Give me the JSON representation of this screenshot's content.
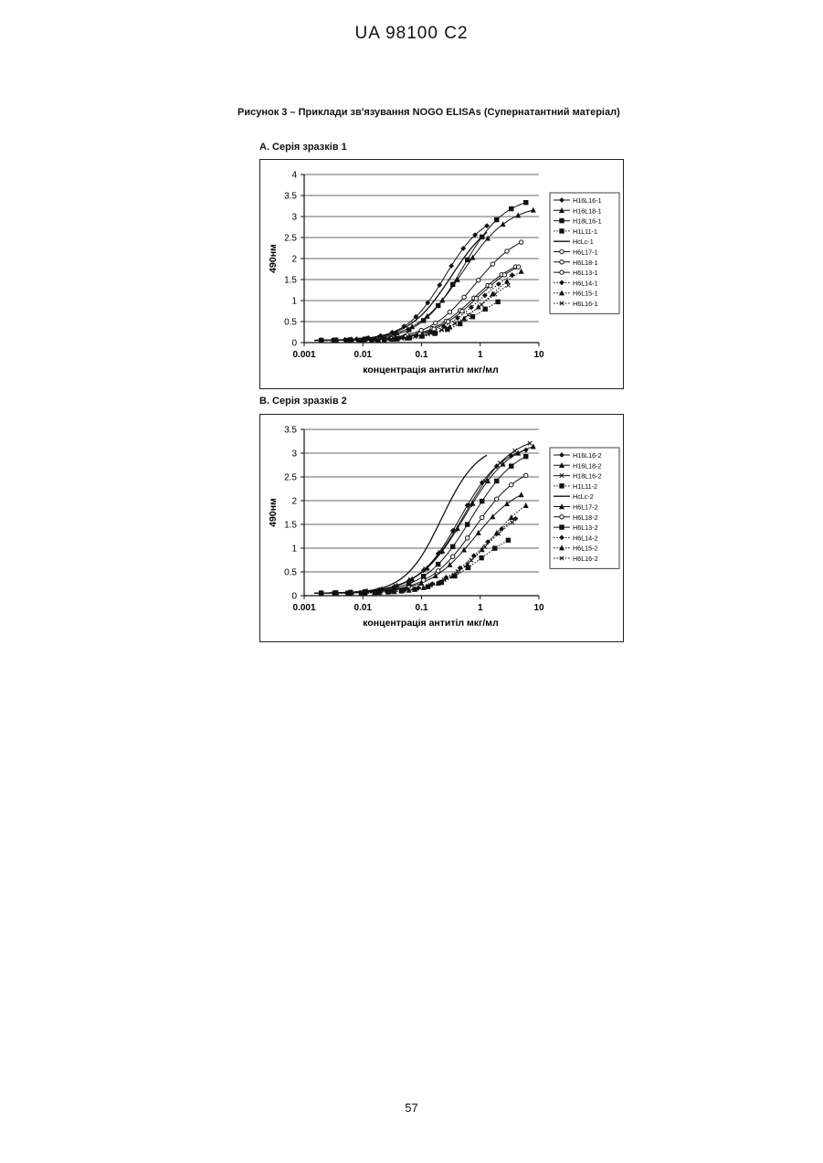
{
  "document": {
    "header": "UA   98100   C2",
    "caption": "Рисунок 3 –   Приклади зв'язування NOGO ELISAs (Супернатантний матеріал)",
    "page_number": "57"
  },
  "chart_data": [
    {
      "type": "line",
      "subtitle": "А. Серія зразків 1",
      "xlabel": "концентрація антитіл мкг/мл",
      "ylabel": "490нм",
      "xscale": "log",
      "xlim": [
        0.001,
        10
      ],
      "ylim": [
        0,
        4
      ],
      "xticks": [
        "0.001",
        "0.01",
        "0.1",
        "1",
        "10"
      ],
      "yticks": [
        "0",
        "0.5",
        "1",
        "1.5",
        "2",
        "2.5",
        "3",
        "3.5",
        "4"
      ],
      "grid": "horizontal",
      "legend_position": "right",
      "series": [
        {
          "name": "H16L16-1",
          "marker": "diamond",
          "dash": "solid",
          "top": 3.1,
          "ec50": 0.25,
          "hill": 1.3,
          "xmax": 1.3
        },
        {
          "name": "H16L18-1",
          "marker": "triangle",
          "dash": "solid",
          "top": 3.3,
          "ec50": 0.5,
          "hill": 1.1,
          "xmax": 8.0
        },
        {
          "name": "H18L16-1",
          "marker": "square",
          "dash": "solid",
          "top": 3.5,
          "ec50": 0.5,
          "hill": 1.2,
          "xmax": 6.0
        },
        {
          "name": "H1L11-1",
          "marker": "square",
          "dash": "dotted",
          "top": 1.4,
          "ec50": 1.0,
          "hill": 1.1,
          "xmax": 2.0
        },
        {
          "name": "HcLc-1",
          "marker": "none",
          "dash": "solid",
          "top": 3.1,
          "ec50": 0.32,
          "hill": 1.2,
          "xmax": 1.3
        },
        {
          "name": "H6L17-1",
          "marker": "circle",
          "dash": "solid",
          "top": 2.1,
          "ec50": 0.8,
          "hill": 1.1,
          "xmax": 4.0
        },
        {
          "name": "H6L18-1",
          "marker": "circle",
          "dash": "solid",
          "top": 2.7,
          "ec50": 0.8,
          "hill": 1.1,
          "xmax": 5.0
        },
        {
          "name": "H6L13-1",
          "marker": "circle",
          "dash": "solid",
          "top": 2.1,
          "ec50": 0.9,
          "hill": 1.1,
          "xmax": 4.5
        },
        {
          "name": "H6L14-1",
          "marker": "diamond",
          "dash": "dotted",
          "top": 2.0,
          "ec50": 1.0,
          "hill": 1.1,
          "xmax": 3.5
        },
        {
          "name": "H6L15-1",
          "marker": "triangle",
          "dash": "dotted",
          "top": 2.1,
          "ec50": 1.4,
          "hill": 1.1,
          "xmax": 5.0
        },
        {
          "name": "H6L16-1",
          "marker": "cross",
          "dash": "dotted",
          "top": 1.8,
          "ec50": 1.1,
          "hill": 1.1,
          "xmax": 3.0
        }
      ]
    },
    {
      "type": "line",
      "subtitle": "В. Серія зразків 2",
      "xlabel": "концентрація антитіл мкг/мл",
      "ylabel": "490нм",
      "xscale": "log",
      "xlim": [
        0.001,
        10
      ],
      "ylim": [
        0,
        3.5
      ],
      "xticks": [
        "0.001",
        "0.01",
        "0.1",
        "1",
        "10"
      ],
      "yticks": [
        "0",
        "0.5",
        "1",
        "1.5",
        "2",
        "2.5",
        "3",
        "3.5"
      ],
      "grid": "horizontal",
      "legend_position": "right",
      "series": [
        {
          "name": "H16L16-2",
          "marker": "diamond",
          "dash": "solid",
          "top": 3.2,
          "ec50": 0.45,
          "hill": 1.2,
          "xmax": 6.0
        },
        {
          "name": "H16L18-2",
          "marker": "triangle",
          "dash": "solid",
          "top": 3.3,
          "ec50": 0.55,
          "hill": 1.1,
          "xmax": 8.0
        },
        {
          "name": "H18L16-2",
          "marker": "cross",
          "dash": "solid",
          "top": 3.4,
          "ec50": 0.55,
          "hill": 1.1,
          "xmax": 7.0
        },
        {
          "name": "H1L11-2",
          "marker": "square",
          "dash": "dotted",
          "top": 1.5,
          "ec50": 1.0,
          "hill": 1.1,
          "xmax": 3.0
        },
        {
          "name": "HcLc-2",
          "marker": "none",
          "dash": "solid",
          "top": 3.2,
          "ec50": 0.22,
          "hill": 1.4,
          "xmax": 1.3
        },
        {
          "name": "H6L17-2",
          "marker": "triangle",
          "dash": "solid",
          "top": 2.4,
          "ec50": 0.8,
          "hill": 1.1,
          "xmax": 5.0
        },
        {
          "name": "H6L18-2",
          "marker": "circle",
          "dash": "solid",
          "top": 2.8,
          "ec50": 0.8,
          "hill": 1.1,
          "xmax": 6.0
        },
        {
          "name": "H6L13-2",
          "marker": "square",
          "dash": "solid",
          "top": 3.2,
          "ec50": 0.7,
          "hill": 1.1,
          "xmax": 6.0
        },
        {
          "name": "H6L14-2",
          "marker": "diamond",
          "dash": "dotted",
          "top": 2.0,
          "ec50": 1.1,
          "hill": 1.1,
          "xmax": 4.0
        },
        {
          "name": "H6L15-2",
          "marker": "triangle",
          "dash": "dotted",
          "top": 2.3,
          "ec50": 1.5,
          "hill": 1.1,
          "xmax": 6.0
        },
        {
          "name": "H6L16-2",
          "marker": "cross",
          "dash": "dotted",
          "top": 2.0,
          "ec50": 1.2,
          "hill": 1.1,
          "xmax": 3.5
        }
      ]
    }
  ]
}
